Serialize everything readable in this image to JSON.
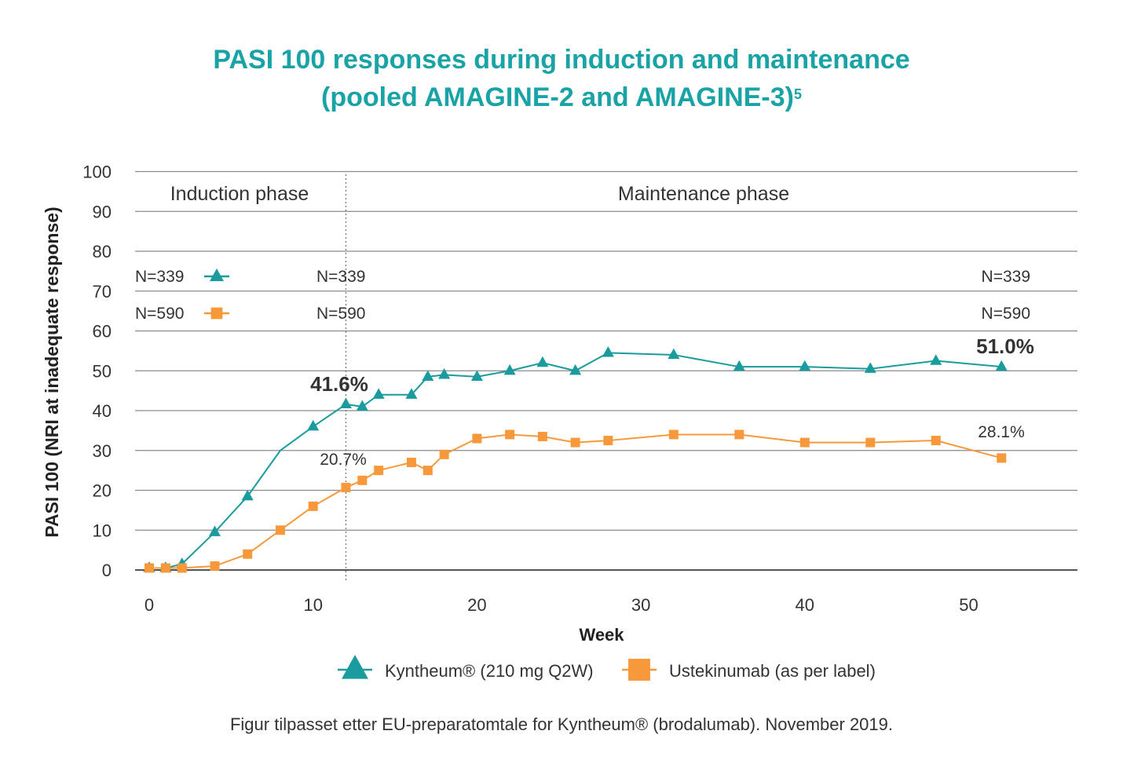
{
  "title_line1": "PASI 100 responses during induction and maintenance",
  "title_line2": "(pooled AMAGINE-2 and AMAGINE-3)",
  "title_sup": "5",
  "caption": "Figur tilpasset etter EU-preparatomtale for Kyntheum® (brodalumab). November 2019.",
  "colors": {
    "teal": "#1a9b9e",
    "orange": "#f7993a",
    "title": "#1aa3a6",
    "grid": "#8a8a8a"
  },
  "chart_data": {
    "type": "line",
    "title": "PASI 100 responses during induction and maintenance (pooled AMAGINE-2 and AMAGINE-3)",
    "xlabel": "Week",
    "ylabel": "PASI 100 (NRI at inadequate response)",
    "xlim": [
      0,
      56
    ],
    "ylim": [
      0,
      100
    ],
    "xticks": [
      0,
      10,
      20,
      30,
      40,
      50
    ],
    "yticks": [
      0,
      10,
      20,
      30,
      40,
      50,
      60,
      70,
      80,
      90,
      100
    ],
    "phase_divider_week": 12,
    "phases": [
      "Induction phase",
      "Maintenance phase"
    ],
    "n_labels": {
      "left": [
        "N=339",
        "N=590"
      ],
      "week12": [
        "N=339",
        "N=590"
      ],
      "week52": [
        "N=339",
        "N=590"
      ]
    },
    "series": [
      {
        "name": "Kyntheum® (210 mg Q2W)",
        "marker": "triangle",
        "color": "#1a9b9e",
        "points": [
          [
            0,
            0.5
          ],
          [
            1,
            0.5
          ],
          [
            2,
            1.5
          ],
          [
            4,
            9.5
          ],
          [
            6,
            18.5
          ],
          [
            8,
            30
          ],
          [
            10,
            36
          ],
          [
            12,
            41.6
          ],
          [
            13,
            41
          ],
          [
            14,
            44
          ],
          [
            16,
            44
          ],
          [
            17,
            48.5
          ],
          [
            18,
            49
          ],
          [
            20,
            48.5
          ],
          [
            22,
            50
          ],
          [
            24,
            52
          ],
          [
            26,
            50
          ],
          [
            28,
            54.5
          ],
          [
            32,
            54
          ],
          [
            36,
            51
          ],
          [
            40,
            51
          ],
          [
            44,
            50.5
          ],
          [
            48,
            52.5
          ],
          [
            52,
            51
          ]
        ],
        "marker_skip_x": [
          8
        ]
      },
      {
        "name": "Ustekinumab (as per label)",
        "marker": "square",
        "color": "#f7993a",
        "points": [
          [
            0,
            0.5
          ],
          [
            1,
            0.5
          ],
          [
            2,
            0.5
          ],
          [
            4,
            1
          ],
          [
            6,
            4
          ],
          [
            8,
            10
          ],
          [
            10,
            16
          ],
          [
            12,
            20.7
          ],
          [
            13,
            22.5
          ],
          [
            14,
            25
          ],
          [
            16,
            27
          ],
          [
            17,
            25
          ],
          [
            18,
            29
          ],
          [
            20,
            33
          ],
          [
            22,
            34
          ],
          [
            24,
            33.5
          ],
          [
            26,
            32
          ],
          [
            28,
            32.5
          ],
          [
            32,
            34
          ],
          [
            36,
            34
          ],
          [
            40,
            32
          ],
          [
            44,
            32
          ],
          [
            48,
            32.5
          ],
          [
            52,
            28.1
          ]
        ],
        "marker_skip_x": []
      }
    ],
    "annotations": [
      {
        "text": "41.6%",
        "x": 12,
        "y": 41.6,
        "bold": true
      },
      {
        "text": "20.7%",
        "x": 12,
        "y": 20.7,
        "bold": false
      },
      {
        "text": "51.0%",
        "x": 52,
        "y": 51,
        "bold": true
      },
      {
        "text": "28.1%",
        "x": 52,
        "y": 28.1,
        "bold": false
      }
    ],
    "legend": [
      {
        "label": "Kyntheum® (210 mg Q2W)",
        "marker": "triangle"
      },
      {
        "label": "Ustekinumab (as per label)",
        "marker": "square"
      }
    ],
    "legend_position": "bottom-center"
  }
}
